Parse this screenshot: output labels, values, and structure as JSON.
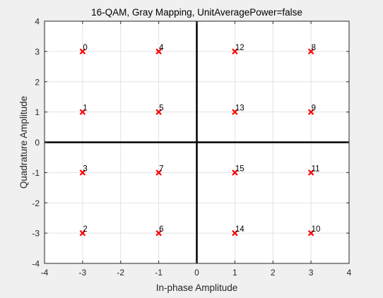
{
  "chart_data": {
    "type": "scatter",
    "title": "16-QAM, Gray Mapping, UnitAveragePower=false",
    "xlabel": "In-phase Amplitude",
    "ylabel": "Quadrature Amplitude",
    "xlim": [
      -4,
      4
    ],
    "ylim": [
      -4,
      4
    ],
    "xticks": [
      -4,
      -3,
      -2,
      -1,
      0,
      1,
      2,
      3,
      4
    ],
    "yticks": [
      -4,
      -3,
      -2,
      -1,
      0,
      1,
      2,
      3,
      4
    ],
    "grid": true,
    "legend": "none",
    "marker": "x",
    "marker_color": "#ff0000",
    "axes_background": "#ffffff",
    "figure_background": "#f0f0f0",
    "points": [
      {
        "x": -3,
        "y": 3,
        "label": "0"
      },
      {
        "x": -3,
        "y": 1,
        "label": "1"
      },
      {
        "x": -3,
        "y": -3,
        "label": "2"
      },
      {
        "x": -3,
        "y": -1,
        "label": "3"
      },
      {
        "x": -1,
        "y": 3,
        "label": "4"
      },
      {
        "x": -1,
        "y": 1,
        "label": "5"
      },
      {
        "x": -1,
        "y": -3,
        "label": "6"
      },
      {
        "x": -1,
        "y": -1,
        "label": "7"
      },
      {
        "x": 3,
        "y": 3,
        "label": "8"
      },
      {
        "x": 3,
        "y": 1,
        "label": "9"
      },
      {
        "x": 3,
        "y": -3,
        "label": "10"
      },
      {
        "x": 3,
        "y": -1,
        "label": "11"
      },
      {
        "x": 1,
        "y": 3,
        "label": "12"
      },
      {
        "x": 1,
        "y": 1,
        "label": "13"
      },
      {
        "x": 1,
        "y": -3,
        "label": "14"
      },
      {
        "x": 1,
        "y": -1,
        "label": "15"
      }
    ]
  }
}
